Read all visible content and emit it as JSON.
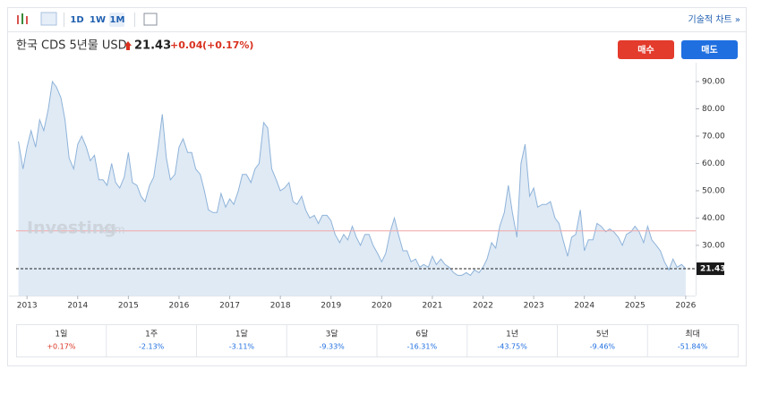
{
  "toolbar": {
    "intervals": [
      "1D",
      "1W",
      "1M"
    ],
    "active_interval": "1M",
    "link": "기술적 차트 »"
  },
  "header": {
    "title": "한국 CDS 5년물 USD",
    "price": "21.43",
    "change": "+0.04",
    "change_pct": "(+0.17%)",
    "buy": "매수",
    "sell": "매도"
  },
  "watermark": [
    "Investing",
    ".com"
  ],
  "chart_data": {
    "type": "area",
    "color": "#8fb3d9",
    "fill": "#dfeaf5",
    "xlim": [
      2012.82,
      2026.02
    ],
    "xticks": [
      2013,
      2014,
      2015,
      2016,
      2017,
      2018,
      2019,
      2020,
      2021,
      2022,
      2023,
      2024,
      2025,
      2026
    ],
    "ylim": [
      11.6,
      96.9
    ],
    "yticks": [
      {
        "value": 30,
        "label": "30.00"
      },
      {
        "value": 40,
        "label": "40.00"
      },
      {
        "value": 50,
        "label": "50.00"
      },
      {
        "value": 60,
        "label": "60.00"
      },
      {
        "value": 70,
        "label": "70.00"
      },
      {
        "value": 80,
        "label": "80.00"
      },
      {
        "value": 90,
        "label": "90.00"
      }
    ],
    "reference_line": 35.3,
    "reference_color": "#f2a6a6",
    "x": [
      2012.83,
      2012.92,
      2013.0,
      2013.08,
      2013.17,
      2013.25,
      2013.33,
      2013.42,
      2013.5,
      2013.58,
      2013.67,
      2013.75,
      2013.83,
      2013.92,
      2014.0,
      2014.08,
      2014.17,
      2014.25,
      2014.33,
      2014.42,
      2014.5,
      2014.58,
      2014.67,
      2014.75,
      2014.83,
      2014.92,
      2015.0,
      2015.08,
      2015.17,
      2015.25,
      2015.33,
      2015.42,
      2015.5,
      2015.58,
      2015.67,
      2015.75,
      2015.83,
      2015.92,
      2016.0,
      2016.08,
      2016.17,
      2016.25,
      2016.33,
      2016.42,
      2016.5,
      2016.58,
      2016.67,
      2016.75,
      2016.83,
      2016.92,
      2017.0,
      2017.08,
      2017.17,
      2017.25,
      2017.33,
      2017.42,
      2017.5,
      2017.58,
      2017.67,
      2017.75,
      2017.83,
      2017.92,
      2018.0,
      2018.08,
      2018.17,
      2018.25,
      2018.33,
      2018.42,
      2018.5,
      2018.58,
      2018.67,
      2018.75,
      2018.83,
      2018.92,
      2019.0,
      2019.08,
      2019.17,
      2019.25,
      2019.33,
      2019.42,
      2019.5,
      2019.58,
      2019.67,
      2019.75,
      2019.83,
      2019.92,
      2020.0,
      2020.08,
      2020.17,
      2020.25,
      2020.33,
      2020.42,
      2020.5,
      2020.58,
      2020.67,
      2020.75,
      2020.83,
      2020.92,
      2021.0,
      2021.08,
      2021.17,
      2021.25,
      2021.33,
      2021.42,
      2021.5,
      2021.58,
      2021.67,
      2021.75,
      2021.83,
      2021.92,
      2022.0,
      2022.08,
      2022.17,
      2022.25,
      2022.33,
      2022.42,
      2022.5,
      2022.58,
      2022.67,
      2022.75,
      2022.83,
      2022.92,
      2023.0,
      2023.08,
      2023.17,
      2023.25,
      2023.33,
      2023.42,
      2023.5,
      2023.58,
      2023.67,
      2023.75,
      2023.83,
      2023.92,
      2024.0,
      2024.08,
      2024.17,
      2024.25,
      2024.33,
      2024.42,
      2024.5,
      2024.58,
      2024.67,
      2024.75,
      2024.83,
      2024.92,
      2025.0,
      2025.08,
      2025.17,
      2025.25,
      2025.33,
      2025.42,
      2025.5,
      2025.58,
      2025.67,
      2025.75,
      2025.83,
      2025.92,
      2026.0
    ],
    "values": [
      68,
      58,
      66,
      72,
      66,
      76,
      72,
      80,
      90,
      88,
      84,
      76,
      62,
      58,
      67,
      70,
      66,
      61,
      63,
      54,
      54,
      52,
      60,
      53,
      51,
      55,
      64,
      53,
      52,
      48,
      46,
      52,
      55,
      65,
      78,
      62,
      54,
      56,
      66,
      69,
      64,
      64,
      58,
      56,
      50,
      43,
      42,
      42,
      49,
      44,
      47,
      45,
      50,
      56,
      56,
      53,
      58,
      60,
      75,
      73,
      58,
      54,
      50,
      51,
      53,
      46,
      45,
      48,
      43,
      40,
      41,
      38,
      41,
      41,
      39,
      34,
      31,
      34,
      32,
      37,
      33,
      30,
      34,
      34,
      30,
      27,
      24,
      27,
      35,
      40,
      34,
      28,
      28,
      24,
      25,
      22,
      23,
      22,
      26,
      23,
      25,
      23,
      22,
      20,
      19,
      19,
      20,
      19,
      21,
      20,
      22,
      25,
      31,
      29,
      37,
      42,
      52,
      42,
      33,
      60,
      67,
      48,
      51,
      44,
      45,
      45,
      46,
      40,
      38,
      32,
      26,
      33,
      34,
      43,
      28,
      32,
      32,
      38,
      37,
      35,
      36,
      35,
      33,
      30,
      34,
      35,
      37,
      35,
      31,
      37,
      32,
      30,
      28,
      24,
      21,
      25,
      22,
      23,
      21.43
    ],
    "value_labels": {
      "158": "21.43"
    }
  },
  "performance": [
    {
      "period": "1일",
      "change": "+0.17%"
    },
    {
      "period": "1주",
      "change": "-2.13%"
    },
    {
      "period": "1달",
      "change": "-3.11%"
    },
    {
      "period": "3달",
      "change": "-9.33%"
    },
    {
      "period": "6달",
      "change": "-16.31%"
    },
    {
      "period": "1년",
      "change": "-43.75%"
    },
    {
      "period": "5년",
      "change": "-9.46%"
    },
    {
      "period": "최대",
      "change": "-51.84%"
    }
  ]
}
